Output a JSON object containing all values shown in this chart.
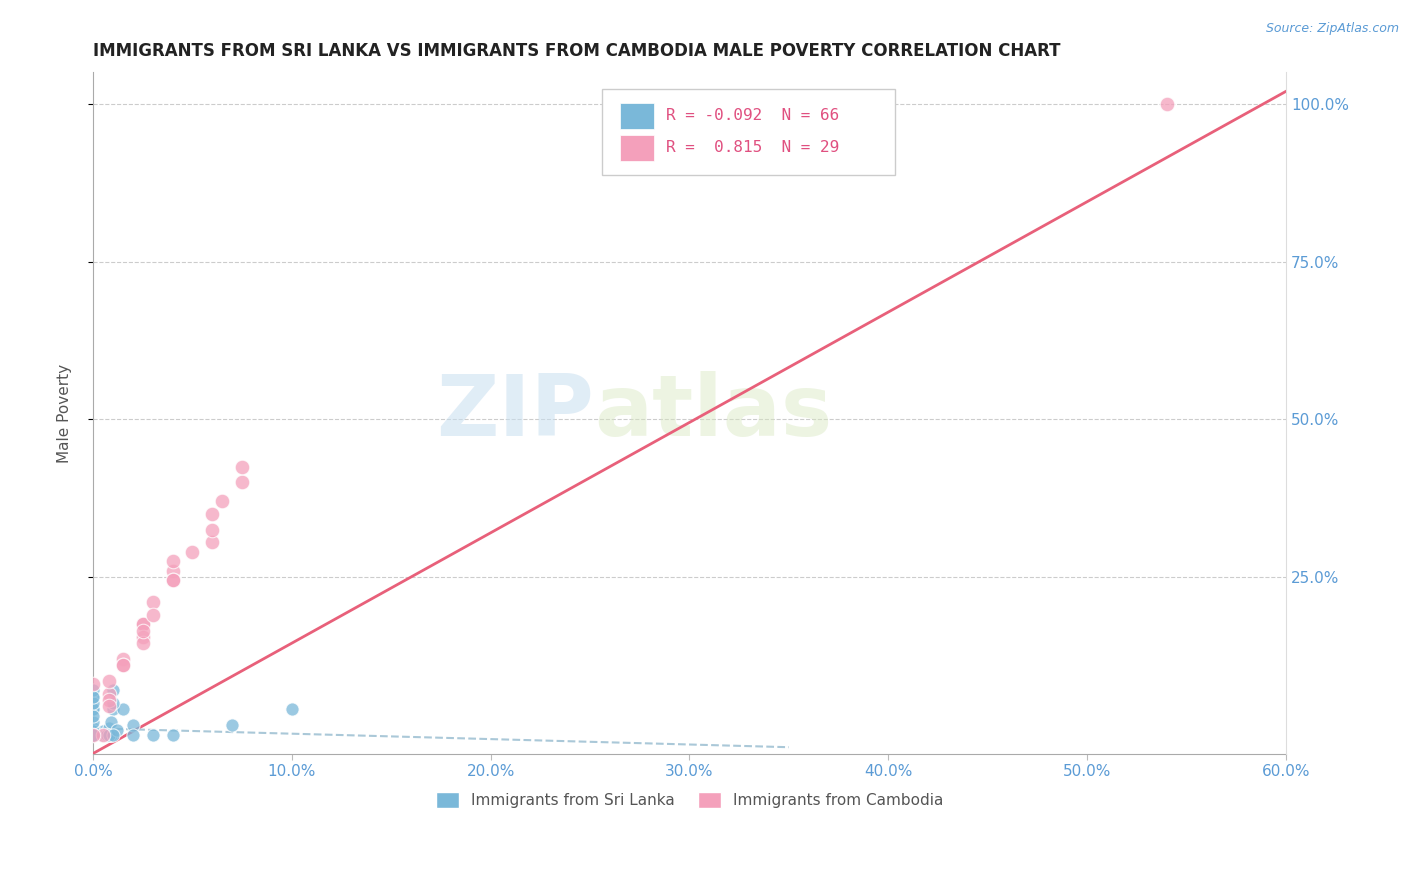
{
  "title": "IMMIGRANTS FROM SRI LANKA VS IMMIGRANTS FROM CAMBODIA MALE POVERTY CORRELATION CHART",
  "source": "Source: ZipAtlas.com",
  "ylabel": "Male Poverty",
  "xlim": [
    0.0,
    0.6
  ],
  "ylim": [
    -0.03,
    1.05
  ],
  "xtick_labels": [
    "0.0%",
    "10.0%",
    "20.0%",
    "30.0%",
    "40.0%",
    "50.0%",
    "60.0%"
  ],
  "xtick_vals": [
    0.0,
    0.1,
    0.2,
    0.3,
    0.4,
    0.5,
    0.6
  ],
  "ytick_labels": [
    "25.0%",
    "50.0%",
    "75.0%",
    "100.0%"
  ],
  "ytick_vals": [
    0.25,
    0.5,
    0.75,
    1.0
  ],
  "sri_lanka_color": "#7ab8d9",
  "cambodia_color": "#f4a0bb",
  "sri_lanka_line_color": "#aac8d8",
  "cambodia_line_color": "#e8607a",
  "sri_lanka_R": -0.092,
  "sri_lanka_N": 66,
  "cambodia_R": 0.815,
  "cambodia_N": 29,
  "watermark_zip": "ZIP",
  "watermark_atlas": "atlas",
  "sri_lanka_x": [
    0.0,
    0.005,
    0.0,
    0.0,
    0.0,
    0.0,
    0.005,
    0.0,
    0.0,
    0.005,
    0.0,
    0.0,
    0.005,
    0.006,
    0.0,
    0.0,
    0.0,
    0.007,
    0.008,
    0.009,
    0.0,
    0.0,
    0.0,
    0.0,
    0.0,
    0.0,
    0.0,
    0.0,
    0.0,
    0.008,
    0.0,
    0.009,
    0.007,
    0.0,
    0.0,
    0.008,
    0.0,
    0.0,
    0.01,
    0.015,
    0.0,
    0.0,
    0.0,
    0.0,
    0.0,
    0.0,
    0.009,
    0.0,
    0.0,
    0.012,
    0.02,
    0.0,
    0.0,
    0.01,
    0.0,
    0.0,
    0.03,
    0.02,
    0.04,
    0.01,
    0.0,
    0.0,
    0.0,
    0.01,
    0.07,
    0.1
  ],
  "sri_lanka_y": [
    0.0,
    0.0,
    0.0,
    0.0,
    0.005,
    0.005,
    0.005,
    0.0,
    0.0,
    0.0,
    0.005,
    0.0,
    0.0,
    0.0,
    0.0,
    0.01,
    0.0,
    0.0,
    0.0,
    0.0,
    0.0,
    0.0,
    0.0,
    0.005,
    0.0,
    0.0,
    0.0,
    0.0,
    0.0,
    0.01,
    0.04,
    0.0,
    0.0,
    0.0,
    0.0,
    0.0,
    0.0,
    0.0,
    0.04,
    0.04,
    0.02,
    0.0,
    0.0,
    0.06,
    0.04,
    0.03,
    0.02,
    0.05,
    0.0,
    0.007,
    0.015,
    0.0,
    0.0,
    0.0,
    0.07,
    0.06,
    0.0,
    0.0,
    0.0,
    0.05,
    0.0,
    0.0,
    0.0,
    0.07,
    0.015,
    0.04
  ],
  "cambodia_x": [
    0.005,
    0.0,
    0.04,
    0.015,
    0.025,
    0.008,
    0.0,
    0.04,
    0.06,
    0.06,
    0.04,
    0.025,
    0.075,
    0.015,
    0.008,
    0.06,
    0.065,
    0.04,
    0.025,
    0.03,
    0.008,
    0.015,
    0.05,
    0.075,
    0.025,
    0.008,
    0.03,
    0.025,
    0.54
  ],
  "cambodia_y": [
    0.0,
    0.0,
    0.26,
    0.12,
    0.175,
    0.065,
    0.08,
    0.245,
    0.305,
    0.325,
    0.275,
    0.175,
    0.4,
    0.11,
    0.085,
    0.35,
    0.37,
    0.245,
    0.155,
    0.21,
    0.055,
    0.11,
    0.29,
    0.425,
    0.145,
    0.045,
    0.19,
    0.165,
    1.0
  ],
  "cam_line_x0": 0.0,
  "cam_line_y0": -0.03,
  "cam_line_x1": 0.6,
  "cam_line_y1": 1.02,
  "sri_line_x0": 0.0,
  "sri_line_y0": 0.01,
  "sri_line_x1": 0.35,
  "sri_line_y1": -0.02
}
